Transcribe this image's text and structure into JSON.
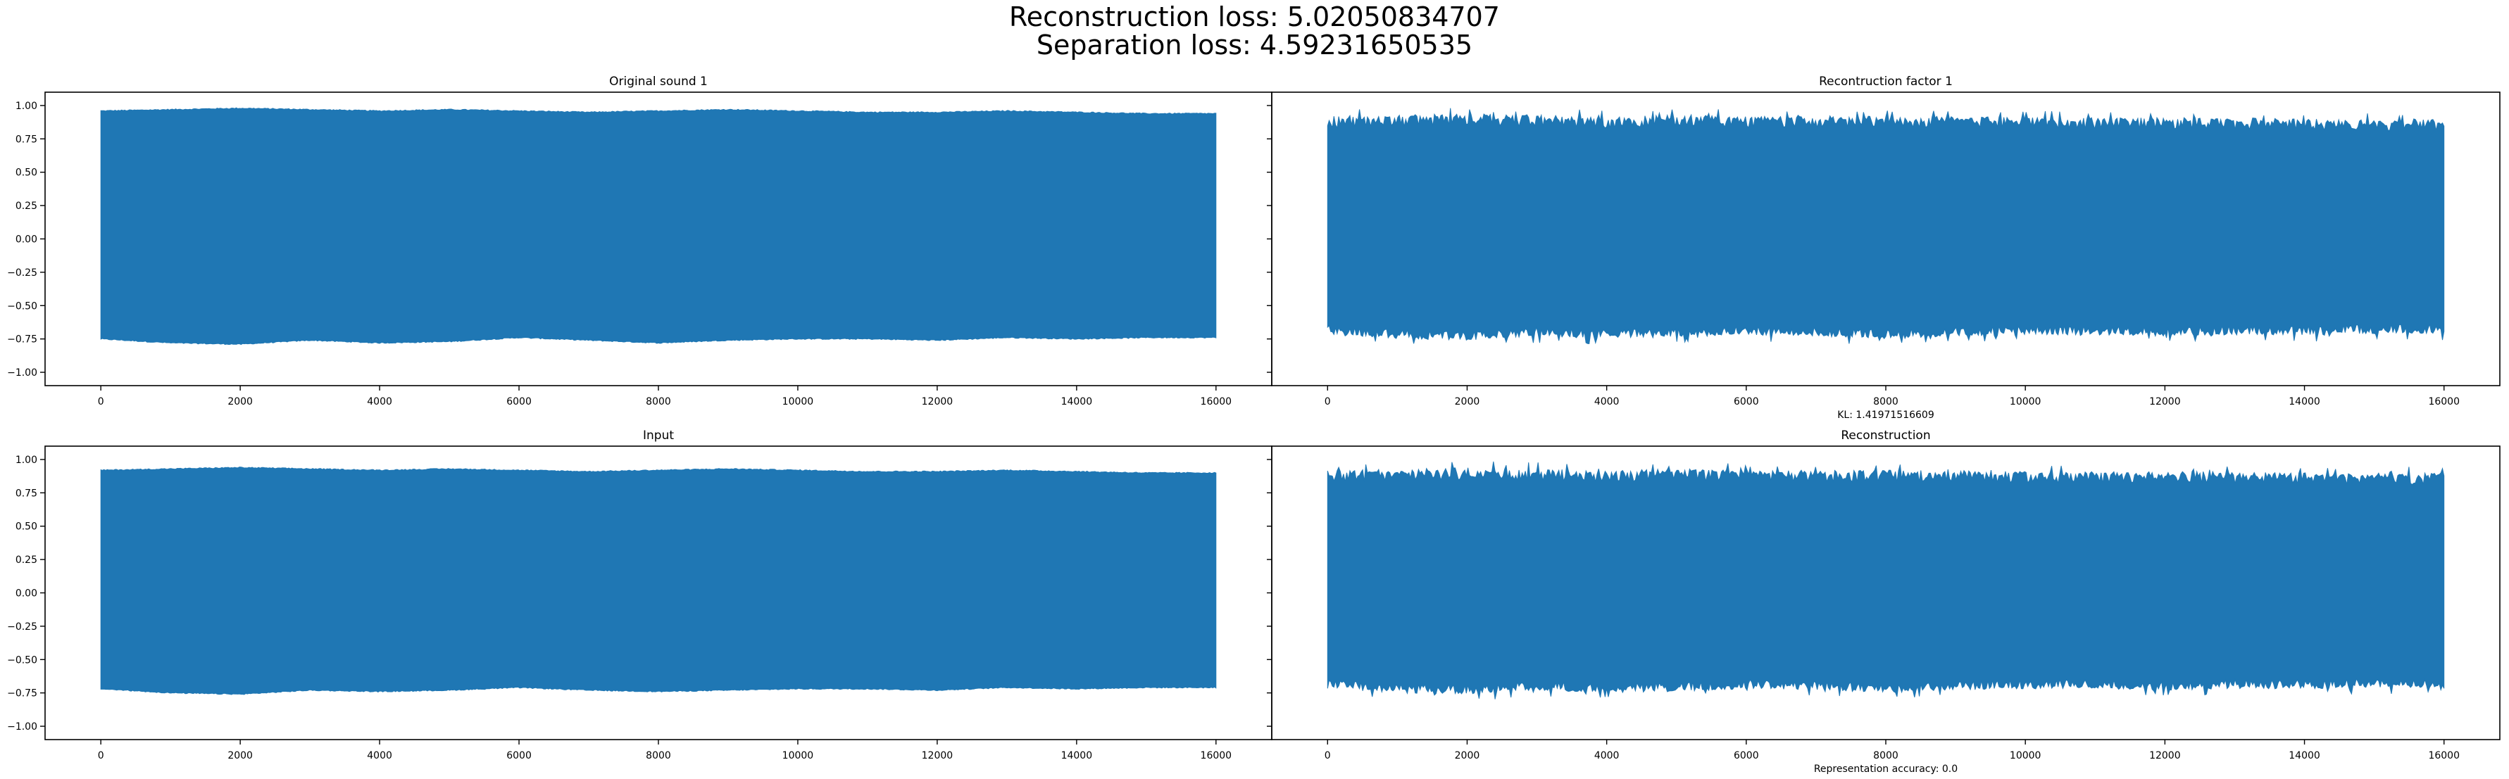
{
  "figure": {
    "suptitle_lines": [
      "Reconstruction loss: 5.02050834707",
      "Separation loss: 4.59231650535"
    ],
    "colors": {
      "signal": "#1f77b4",
      "axes": "#000000",
      "background": "#ffffff"
    }
  },
  "chart_data": [
    {
      "type": "line",
      "title": "Original sound 1",
      "xlabel": "",
      "ylabel": "",
      "xlim": [
        -800,
        16800
      ],
      "ylim": [
        -1.1,
        1.1
      ],
      "xticks": [
        0,
        2000,
        4000,
        6000,
        8000,
        10000,
        12000,
        14000,
        16000
      ],
      "yticks": [
        -1.0,
        -0.75,
        -0.5,
        -0.25,
        0.0,
        0.25,
        0.5,
        0.75,
        1.0
      ],
      "ytick_labels": [
        "−1.00",
        "−0.75",
        "−0.50",
        "−0.25",
        "0.00",
        "0.25",
        "0.50",
        "0.75",
        "1.00"
      ],
      "series": [
        {
          "n_samples": 16000,
          "upper_envelope": [
            0.96,
            0.97,
            0.98,
            0.97,
            0.96,
            0.97,
            0.96,
            0.95,
            0.96,
            0.97,
            0.96,
            0.95,
            0.95,
            0.96,
            0.95,
            0.94,
            0.94
          ],
          "lower_envelope": [
            -0.75,
            -0.78,
            -0.79,
            -0.76,
            -0.78,
            -0.77,
            -0.74,
            -0.76,
            -0.78,
            -0.76,
            -0.75,
            -0.75,
            -0.76,
            -0.74,
            -0.75,
            -0.74,
            -0.74
          ],
          "noisy": false
        }
      ]
    },
    {
      "type": "line",
      "title": "Recontruction factor 1",
      "xlabel": "KL: 1.41971516609",
      "ylabel": "",
      "xlim": [
        -800,
        16800
      ],
      "ylim": [
        -1.1,
        1.1
      ],
      "xticks": [
        0,
        2000,
        4000,
        6000,
        8000,
        10000,
        12000,
        14000,
        16000
      ],
      "yticks": [
        -1.0,
        -0.75,
        -0.5,
        -0.25,
        0.0,
        0.25,
        0.5,
        0.75,
        1.0
      ],
      "ytick_labels": [
        "",
        "",
        "",
        "",
        "",
        "",
        "",
        "",
        ""
      ],
      "series": [
        {
          "n_samples": 16000,
          "upper_envelope": [
            0.92,
            0.93,
            0.94,
            0.93,
            0.92,
            0.93,
            0.92,
            0.92,
            0.92,
            0.92,
            0.91,
            0.91,
            0.91,
            0.91,
            0.9,
            0.9,
            0.9
          ],
          "lower_envelope": [
            -0.72,
            -0.75,
            -0.76,
            -0.73,
            -0.75,
            -0.74,
            -0.72,
            -0.73,
            -0.75,
            -0.73,
            -0.72,
            -0.72,
            -0.73,
            -0.72,
            -0.72,
            -0.71,
            -0.71
          ],
          "noisy": true
        }
      ]
    },
    {
      "type": "line",
      "title": "Input",
      "xlabel": "",
      "ylabel": "",
      "xlim": [
        -800,
        16800
      ],
      "ylim": [
        -1.1,
        1.1
      ],
      "xticks": [
        0,
        2000,
        4000,
        6000,
        8000,
        10000,
        12000,
        14000,
        16000
      ],
      "yticks": [
        -1.0,
        -0.75,
        -0.5,
        -0.25,
        0.0,
        0.25,
        0.5,
        0.75,
        1.0
      ],
      "ytick_labels": [
        "−1.00",
        "−0.75",
        "−0.50",
        "−0.25",
        "0.00",
        "0.25",
        "0.50",
        "0.75",
        "1.00"
      ],
      "series": [
        {
          "n_samples": 16000,
          "upper_envelope": [
            0.92,
            0.93,
            0.94,
            0.93,
            0.92,
            0.93,
            0.92,
            0.91,
            0.92,
            0.93,
            0.92,
            0.91,
            0.91,
            0.92,
            0.91,
            0.9,
            0.9
          ],
          "lower_envelope": [
            -0.72,
            -0.75,
            -0.76,
            -0.73,
            -0.74,
            -0.73,
            -0.71,
            -0.73,
            -0.74,
            -0.73,
            -0.72,
            -0.72,
            -0.73,
            -0.71,
            -0.72,
            -0.71,
            -0.71
          ],
          "noisy": false
        }
      ]
    },
    {
      "type": "line",
      "title": "Reconstruction",
      "xlabel": "Representation accuracy: 0.0",
      "ylabel": "",
      "xlim": [
        -800,
        16800
      ],
      "ylim": [
        -1.1,
        1.1
      ],
      "xticks": [
        0,
        2000,
        4000,
        6000,
        8000,
        10000,
        12000,
        14000,
        16000
      ],
      "yticks": [
        -1.0,
        -0.75,
        -0.5,
        -0.25,
        0.0,
        0.25,
        0.5,
        0.75,
        1.0
      ],
      "ytick_labels": [
        "",
        "",
        "",
        "",
        "",
        "",
        "",
        "",
        ""
      ],
      "series": [
        {
          "n_samples": 16000,
          "upper_envelope": [
            0.92,
            0.93,
            0.94,
            0.93,
            0.92,
            0.93,
            0.92,
            0.92,
            0.92,
            0.92,
            0.91,
            0.91,
            0.91,
            0.91,
            0.9,
            0.9,
            0.9
          ],
          "lower_envelope": [
            -0.72,
            -0.75,
            -0.76,
            -0.73,
            -0.75,
            -0.74,
            -0.72,
            -0.73,
            -0.75,
            -0.73,
            -0.72,
            -0.72,
            -0.73,
            -0.72,
            -0.72,
            -0.71,
            -0.71
          ],
          "noisy": true
        }
      ]
    }
  ]
}
